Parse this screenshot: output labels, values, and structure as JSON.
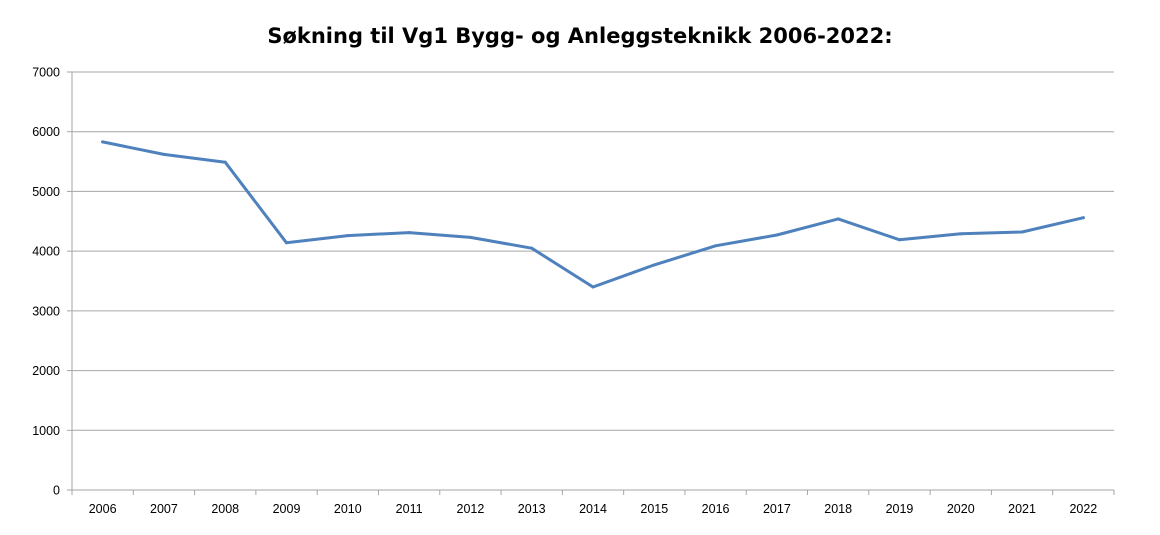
{
  "chart_data": {
    "type": "line",
    "title": "Søkning til Vg1 Bygg- og Anleggsteknikk 2006-2022:",
    "xlabel": "",
    "ylabel": "",
    "categories": [
      "2006",
      "2007",
      "2008",
      "2009",
      "2010",
      "2011",
      "2012",
      "2013",
      "2014",
      "2015",
      "2016",
      "2017",
      "2018",
      "2019",
      "2020",
      "2021",
      "2022"
    ],
    "series": [
      {
        "values": [
          5830,
          5620,
          5490,
          4140,
          4260,
          4310,
          4230,
          4050,
          3400,
          3770,
          4090,
          4270,
          4540,
          4190,
          4290,
          4320,
          4560
        ],
        "color": "#4f81bd"
      }
    ],
    "ylim": [
      0,
      7000
    ],
    "yticks": [
      0,
      1000,
      2000,
      3000,
      4000,
      5000,
      6000,
      7000
    ],
    "grid": "horizontal",
    "legend": "none",
    "gridColor": "#a6a6a6",
    "axisColor": "#a6a6a6"
  }
}
